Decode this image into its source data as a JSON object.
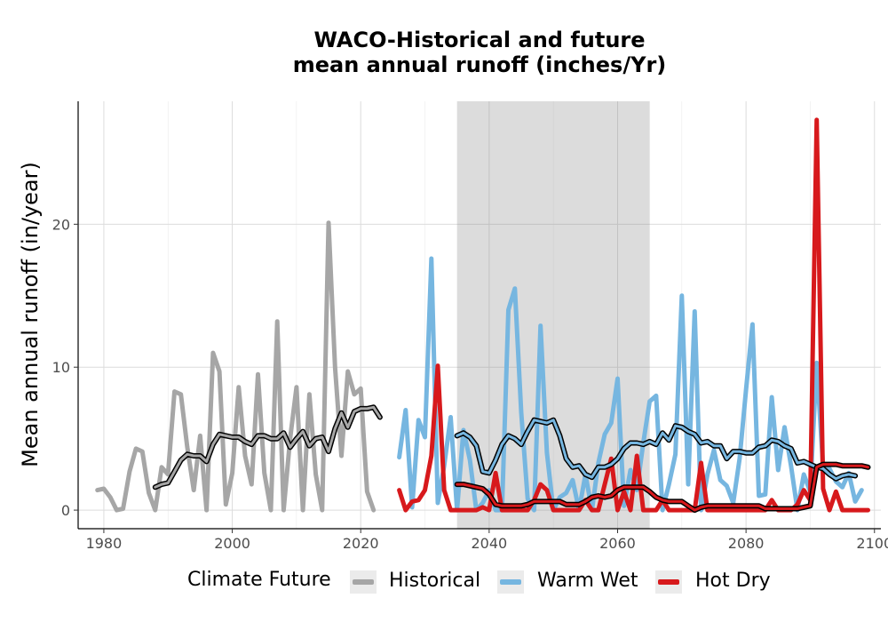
{
  "chart_data": {
    "type": "line",
    "title_line1": "WACO-Historical and future",
    "title_line2": "mean annual runoff (inches/Yr)",
    "xlabel": "",
    "ylabel": "Mean annual runoff (in/year)",
    "xlim": [
      1976,
      2101
    ],
    "ylim": [
      -1.3,
      28.6
    ],
    "xticks": [
      1980,
      2000,
      2020,
      2040,
      2060,
      2080,
      2100
    ],
    "yticks": [
      0,
      10,
      20
    ],
    "grid": true,
    "shaded_period": [
      2035,
      2065
    ],
    "legend": {
      "title": "Climate Future",
      "position": "bottom",
      "entries": [
        {
          "label": "Historical",
          "color": "#a6a6a6"
        },
        {
          "label": "Warm Wet",
          "color": "#76b6e0"
        },
        {
          "label": "Hot Dry",
          "color": "#d7191c"
        }
      ]
    },
    "series": [
      {
        "name": "Historical",
        "color": "#a6a6a6",
        "x_start": 1979,
        "values": [
          1.4,
          1.5,
          0.9,
          0.0,
          0.1,
          2.7,
          4.3,
          4.1,
          1.2,
          0.0,
          3.0,
          2.5,
          8.3,
          8.1,
          4.4,
          1.4,
          5.2,
          0.0,
          11.0,
          9.7,
          0.4,
          2.6,
          8.6,
          3.8,
          1.8,
          9.5,
          2.6,
          0.0,
          13.2,
          0.0,
          5.0,
          8.6,
          0.0,
          8.1,
          2.5,
          0.0,
          20.1,
          10.0,
          3.8,
          9.7,
          8.1,
          8.5,
          1.3,
          0.0
        ]
      },
      {
        "name": "Historical rolling mean",
        "color": "#000000",
        "x_start": 1988,
        "values": [
          1.6,
          1.8,
          1.9,
          2.7,
          3.5,
          3.9,
          3.8,
          3.8,
          3.4,
          4.6,
          5.3,
          5.2,
          5.1,
          5.1,
          4.8,
          4.6,
          5.2,
          5.2,
          5.0,
          5.0,
          5.4,
          4.4,
          5.0,
          5.5,
          4.5,
          5.0,
          5.1,
          4.1,
          5.7,
          6.8,
          5.8,
          6.9,
          7.1,
          7.1,
          7.2,
          6.5
        ]
      },
      {
        "name": "Warm Wet",
        "color": "#76b6e0",
        "x_start": 2026,
        "values": [
          3.7,
          7.0,
          0.2,
          6.3,
          5.1,
          17.6,
          0.5,
          3.1,
          6.5,
          0.0,
          5.6,
          3.5,
          0.0,
          0.5,
          1.4,
          0.0,
          0.0,
          14.0,
          15.5,
          6.8,
          0.8,
          0.0,
          12.9,
          4.0,
          0.0,
          0.9,
          1.2,
          2.1,
          0.0,
          2.5,
          0.0,
          3.3,
          5.3,
          6.1,
          9.2,
          0.3,
          2.8,
          1.4,
          4.7,
          7.6,
          8.0,
          0.0,
          1.8,
          3.9,
          15.0,
          1.8,
          13.9,
          0.0,
          2.5,
          4.2,
          2.1,
          1.7,
          0.5,
          3.6,
          8.4,
          13.0,
          1.0,
          1.1,
          7.9,
          2.8,
          5.8,
          3.1,
          0.0,
          2.5,
          1.3,
          10.3,
          3.0,
          2.9,
          2.0,
          1.6,
          2.6,
          0.6,
          1.4
        ]
      },
      {
        "name": "Hot Dry",
        "color": "#d7191c",
        "x_start": 2026,
        "values": [
          1.4,
          0.0,
          0.6,
          0.7,
          1.4,
          3.8,
          10.1,
          1.4,
          0.0,
          0.0,
          0.0,
          0.0,
          0.0,
          0.2,
          0.0,
          2.6,
          0.0,
          0.0,
          0.0,
          0.0,
          0.0,
          0.7,
          1.8,
          1.4,
          0.0,
          0.0,
          0.0,
          0.0,
          0.0,
          0.7,
          0.0,
          0.0,
          1.8,
          3.6,
          0.0,
          1.3,
          0.0,
          3.8,
          0.0,
          0.0,
          0.0,
          0.7,
          0.0,
          0.0,
          0.0,
          0.0,
          0.0,
          3.3,
          0.0,
          0.0,
          0.0,
          0.0,
          0.0,
          0.0,
          0.0,
          0.0,
          0.0,
          0.0,
          0.7,
          0.0,
          0.0,
          0.0,
          0.4,
          1.4,
          0.7,
          27.3,
          1.5,
          0.0,
          1.3,
          0.0,
          0.0,
          0.0,
          0.0,
          0.0
        ]
      },
      {
        "name": "Warm Wet rolling mean",
        "color": "#000000",
        "x_start": 2035,
        "values": [
          5.2,
          5.4,
          5.1,
          4.5,
          2.7,
          2.6,
          3.5,
          4.6,
          5.2,
          5.0,
          4.6,
          5.5,
          6.3,
          6.2,
          6.1,
          6.3,
          5.2,
          3.6,
          3.0,
          3.1,
          2.5,
          2.3,
          3.0,
          3.0,
          3.2,
          3.6,
          4.3,
          4.7,
          4.7,
          4.6,
          4.8,
          4.6,
          5.4,
          4.9,
          5.9,
          5.8,
          5.5,
          5.3,
          4.7,
          4.8,
          4.5,
          4.5,
          3.6,
          4.1,
          4.1,
          4.0,
          4.0,
          4.4,
          4.5,
          4.9,
          4.8,
          4.5,
          4.3,
          3.3,
          3.4,
          3.2,
          3.0,
          2.9,
          2.5,
          2.2,
          2.4,
          2.5,
          2.4
        ]
      },
      {
        "name": "Hot Dry rolling mean",
        "color": "#000000",
        "x_start": 2035,
        "values": [
          1.8,
          1.8,
          1.7,
          1.6,
          1.5,
          1.1,
          0.4,
          0.3,
          0.3,
          0.3,
          0.3,
          0.4,
          0.6,
          0.6,
          0.6,
          0.6,
          0.6,
          0.4,
          0.4,
          0.4,
          0.6,
          0.9,
          1.0,
          0.9,
          1.0,
          1.4,
          1.6,
          1.6,
          1.6,
          1.6,
          1.3,
          0.9,
          0.7,
          0.6,
          0.6,
          0.6,
          0.3,
          0.0,
          0.2,
          0.3,
          0.3,
          0.3,
          0.3,
          0.3,
          0.3,
          0.3,
          0.3,
          0.3,
          0.1,
          0.1,
          0.1,
          0.1,
          0.1,
          0.1,
          0.2,
          0.3,
          3.0,
          3.2,
          3.2,
          3.2,
          3.1,
          3.1,
          3.1,
          3.1,
          3.0
        ]
      }
    ]
  }
}
